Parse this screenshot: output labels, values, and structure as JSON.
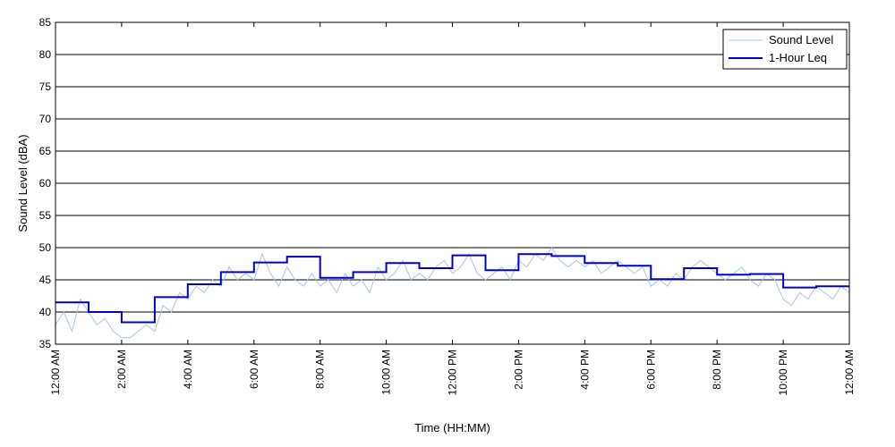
{
  "chart_data": {
    "type": "line",
    "xlabel": "Time (HH:MM)",
    "ylabel": "Sound Level (dBA)",
    "ylim": [
      35,
      85
    ],
    "yticks": [
      35,
      40,
      45,
      50,
      55,
      60,
      65,
      70,
      75,
      80,
      85
    ],
    "xlim_hours": [
      0,
      24
    ],
    "xticks": [
      {
        "hour": 0,
        "label": "12:00 AM"
      },
      {
        "hour": 2,
        "label": "2:00 AM"
      },
      {
        "hour": 4,
        "label": "4:00 AM"
      },
      {
        "hour": 6,
        "label": "6:00 AM"
      },
      {
        "hour": 8,
        "label": "8:00 AM"
      },
      {
        "hour": 10,
        "label": "10:00 AM"
      },
      {
        "hour": 12,
        "label": "12:00 PM"
      },
      {
        "hour": 14,
        "label": "2:00 PM"
      },
      {
        "hour": 16,
        "label": "4:00 PM"
      },
      {
        "hour": 18,
        "label": "6:00 PM"
      },
      {
        "hour": 20,
        "label": "8:00 PM"
      },
      {
        "hour": 22,
        "label": "10:00 PM"
      },
      {
        "hour": 24,
        "label": "12:00 AM"
      }
    ],
    "grid": "horizontal",
    "legend_position": "top-right",
    "series": [
      {
        "name": "Sound Level",
        "color": "#a8c4f0",
        "style": "thin-line",
        "x_hours": [
          0.0,
          0.25,
          0.5,
          0.75,
          1.0,
          1.25,
          1.5,
          1.75,
          2.0,
          2.25,
          2.5,
          2.75,
          3.0,
          3.25,
          3.5,
          3.75,
          4.0,
          4.25,
          4.5,
          4.75,
          5.0,
          5.25,
          5.5,
          5.75,
          6.0,
          6.25,
          6.5,
          6.75,
          7.0,
          7.25,
          7.5,
          7.75,
          8.0,
          8.25,
          8.5,
          8.75,
          9.0,
          9.25,
          9.5,
          9.75,
          10.0,
          10.25,
          10.5,
          10.75,
          11.0,
          11.25,
          11.5,
          11.75,
          12.0,
          12.25,
          12.5,
          12.75,
          13.0,
          13.25,
          13.5,
          13.75,
          14.0,
          14.25,
          14.5,
          14.75,
          15.0,
          15.25,
          15.5,
          15.75,
          16.0,
          16.25,
          16.5,
          16.75,
          17.0,
          17.25,
          17.5,
          17.75,
          18.0,
          18.25,
          18.5,
          18.75,
          19.0,
          19.25,
          19.5,
          19.75,
          20.0,
          20.25,
          20.5,
          20.75,
          21.0,
          21.25,
          21.5,
          21.75,
          22.0,
          22.25,
          22.5,
          22.75,
          23.0,
          23.25,
          23.5,
          23.75,
          24.0
        ],
        "values": [
          38,
          40,
          37,
          42,
          40,
          38,
          39,
          37,
          36,
          36,
          37,
          38,
          37,
          41,
          40,
          43,
          42,
          44,
          43,
          45,
          44,
          47,
          45,
          46,
          45,
          49,
          46,
          44,
          47,
          45,
          44,
          46,
          44,
          45,
          43,
          46,
          44,
          45,
          43,
          47,
          45,
          46,
          48,
          45,
          46,
          45,
          47,
          48,
          46,
          47,
          49,
          46,
          45,
          46,
          47,
          45,
          48,
          47,
          49,
          48,
          50,
          48,
          47,
          48,
          47,
          48,
          46,
          47,
          48,
          47,
          46,
          47,
          44,
          45,
          44,
          46,
          45,
          47,
          48,
          47,
          46,
          45,
          46,
          47,
          45,
          44,
          46,
          45,
          42,
          41,
          43,
          42,
          44,
          43,
          42,
          44,
          43
        ]
      },
      {
        "name": "1-Hour Leq",
        "color": "#0000cc",
        "style": "step",
        "hourly_values": [
          41.5,
          40.0,
          38.4,
          42.3,
          44.3,
          46.2,
          47.7,
          48.6,
          45.3,
          46.2,
          47.6,
          46.8,
          48.8,
          46.5,
          49.0,
          48.7,
          47.6,
          47.2,
          45.1,
          46.8,
          45.8,
          45.9,
          43.8,
          44.0
        ]
      }
    ]
  }
}
